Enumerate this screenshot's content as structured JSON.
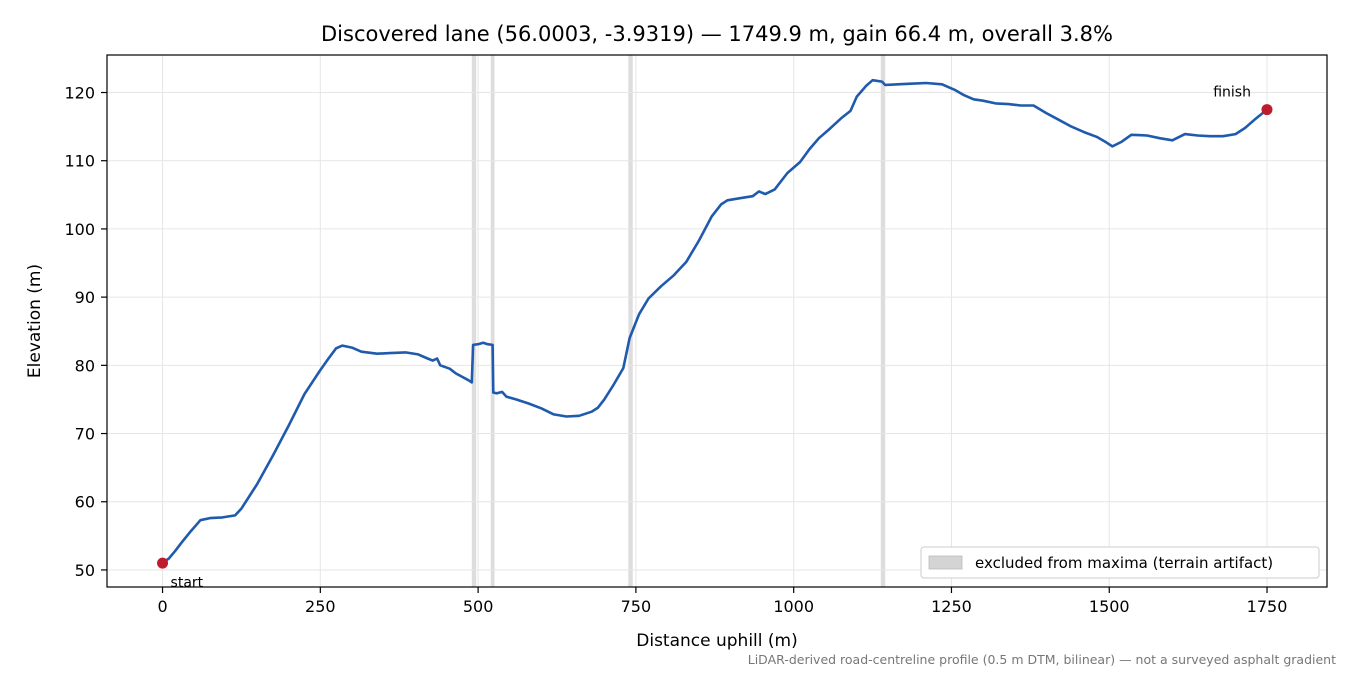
{
  "chart_data": {
    "type": "line",
    "title": "Discovered lane (56.0003, -3.9319) — 1749.9 m, gain 66.4 m, overall 3.8%",
    "xlabel": "Distance uphill (m)",
    "ylabel": "Elevation (m)",
    "xlim": [
      -88,
      1845
    ],
    "ylim": [
      47.5,
      125.5
    ],
    "xticks": [
      0,
      250,
      500,
      750,
      1000,
      1250,
      1500,
      1750
    ],
    "yticks": [
      50,
      60,
      70,
      80,
      90,
      100,
      110,
      120
    ],
    "grid": true,
    "legend_position": "lower-right",
    "series": [
      {
        "color": "#1f5aad",
        "points": [
          [
            0,
            51.0
          ],
          [
            10,
            51.7
          ],
          [
            20,
            52.8
          ],
          [
            30,
            54.0
          ],
          [
            45,
            55.7
          ],
          [
            60,
            57.3
          ],
          [
            75,
            57.6
          ],
          [
            95,
            57.7
          ],
          [
            115,
            58.0
          ],
          [
            125,
            59.0
          ],
          [
            150,
            62.6
          ],
          [
            175,
            66.8
          ],
          [
            200,
            71.2
          ],
          [
            225,
            75.8
          ],
          [
            250,
            79.3
          ],
          [
            263,
            81.0
          ],
          [
            275,
            82.5
          ],
          [
            285,
            82.9
          ],
          [
            300,
            82.6
          ],
          [
            315,
            82.0
          ],
          [
            340,
            81.7
          ],
          [
            360,
            81.8
          ],
          [
            385,
            81.9
          ],
          [
            405,
            81.6
          ],
          [
            420,
            81.0
          ],
          [
            428,
            80.7
          ],
          [
            435,
            81.0
          ],
          [
            440,
            80.0
          ],
          [
            455,
            79.5
          ],
          [
            465,
            78.8
          ],
          [
            475,
            78.3
          ],
          [
            485,
            77.8
          ],
          [
            490,
            77.5
          ],
          [
            492,
            83.0
          ],
          [
            500,
            83.1
          ],
          [
            508,
            83.3
          ],
          [
            515,
            83.1
          ],
          [
            523,
            83.0
          ],
          [
            524,
            76.0
          ],
          [
            530,
            75.9
          ],
          [
            538,
            76.1
          ],
          [
            545,
            75.4
          ],
          [
            560,
            75.0
          ],
          [
            580,
            74.4
          ],
          [
            600,
            73.7
          ],
          [
            620,
            72.8
          ],
          [
            640,
            72.5
          ],
          [
            660,
            72.6
          ],
          [
            680,
            73.2
          ],
          [
            690,
            73.8
          ],
          [
            700,
            75.0
          ],
          [
            715,
            77.2
          ],
          [
            730,
            79.6
          ],
          [
            740,
            84.0
          ],
          [
            755,
            87.5
          ],
          [
            770,
            89.8
          ],
          [
            790,
            91.6
          ],
          [
            810,
            93.2
          ],
          [
            830,
            95.2
          ],
          [
            850,
            98.3
          ],
          [
            870,
            101.8
          ],
          [
            885,
            103.6
          ],
          [
            895,
            104.2
          ],
          [
            915,
            104.5
          ],
          [
            935,
            104.8
          ],
          [
            945,
            105.5
          ],
          [
            955,
            105.1
          ],
          [
            970,
            105.8
          ],
          [
            990,
            108.2
          ],
          [
            1010,
            109.8
          ],
          [
            1025,
            111.7
          ],
          [
            1040,
            113.3
          ],
          [
            1055,
            114.5
          ],
          [
            1075,
            116.2
          ],
          [
            1090,
            117.3
          ],
          [
            1100,
            119.4
          ],
          [
            1115,
            121.0
          ],
          [
            1125,
            121.8
          ],
          [
            1140,
            121.6
          ],
          [
            1145,
            121.1
          ],
          [
            1165,
            121.2
          ],
          [
            1190,
            121.3
          ],
          [
            1210,
            121.4
          ],
          [
            1235,
            121.2
          ],
          [
            1255,
            120.4
          ],
          [
            1270,
            119.6
          ],
          [
            1285,
            119.0
          ],
          [
            1300,
            118.8
          ],
          [
            1320,
            118.4
          ],
          [
            1340,
            118.3
          ],
          [
            1360,
            118.1
          ],
          [
            1380,
            118.1
          ],
          [
            1400,
            117.0
          ],
          [
            1420,
            116.0
          ],
          [
            1440,
            115.0
          ],
          [
            1460,
            114.2
          ],
          [
            1480,
            113.5
          ],
          [
            1495,
            112.7
          ],
          [
            1505,
            112.1
          ],
          [
            1520,
            112.8
          ],
          [
            1535,
            113.8
          ],
          [
            1560,
            113.7
          ],
          [
            1580,
            113.3
          ],
          [
            1600,
            113.0
          ],
          [
            1620,
            113.9
          ],
          [
            1640,
            113.7
          ],
          [
            1660,
            113.6
          ],
          [
            1680,
            113.6
          ],
          [
            1700,
            113.9
          ],
          [
            1715,
            114.8
          ],
          [
            1730,
            116.0
          ],
          [
            1749.9,
            117.5
          ]
        ]
      }
    ],
    "excluded_regions": [
      [
        490,
        497
      ],
      [
        520,
        526
      ],
      [
        738,
        745
      ],
      [
        1138,
        1145
      ]
    ],
    "excluded_color": "#d4d4d4",
    "markers": [
      {
        "x": 0,
        "y": 51.0,
        "label": "start",
        "color": "#c01b2c"
      },
      {
        "x": 1749.9,
        "y": 117.5,
        "label": "finish",
        "color": "#c01b2c"
      }
    ],
    "legend": [
      {
        "label": "excluded from maxima (terrain artifact)",
        "swatch": "#d4d4d4"
      }
    ],
    "caption": "LiDAR-derived road-centreline profile (0.5 m DTM, bilinear) — not a surveyed asphalt gradient"
  }
}
